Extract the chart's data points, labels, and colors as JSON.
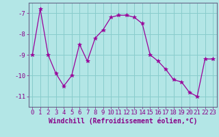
{
  "x": [
    0,
    1,
    2,
    3,
    4,
    5,
    6,
    7,
    8,
    9,
    10,
    11,
    12,
    13,
    14,
    15,
    16,
    17,
    18,
    19,
    20,
    21,
    22,
    23
  ],
  "y": [
    -9.0,
    -6.8,
    -9.0,
    -9.9,
    -10.5,
    -10.0,
    -8.5,
    -9.3,
    -8.2,
    -7.8,
    -7.2,
    -7.1,
    -7.1,
    -7.2,
    -7.5,
    -9.0,
    -9.3,
    -9.7,
    -10.2,
    -10.3,
    -10.8,
    -11.0,
    -9.2,
    -9.2
  ],
  "line_color": "#990099",
  "marker": "*",
  "marker_size": 4,
  "bg_color": "#b3e6e6",
  "grid_color": "#88cccc",
  "xlabel": "Windchill (Refroidissement éolien,°C)",
  "xlim": [
    -0.5,
    23.5
  ],
  "ylim": [
    -11.5,
    -6.5
  ],
  "yticks": [
    -11,
    -10,
    -9,
    -8,
    -7
  ],
  "xticks": [
    0,
    1,
    2,
    3,
    4,
    5,
    6,
    7,
    8,
    9,
    10,
    11,
    12,
    13,
    14,
    15,
    16,
    17,
    18,
    19,
    20,
    21,
    22,
    23
  ],
  "tick_fontsize": 6.5,
  "xlabel_fontsize": 7,
  "label_color": "#880088",
  "spine_color": "#666688"
}
